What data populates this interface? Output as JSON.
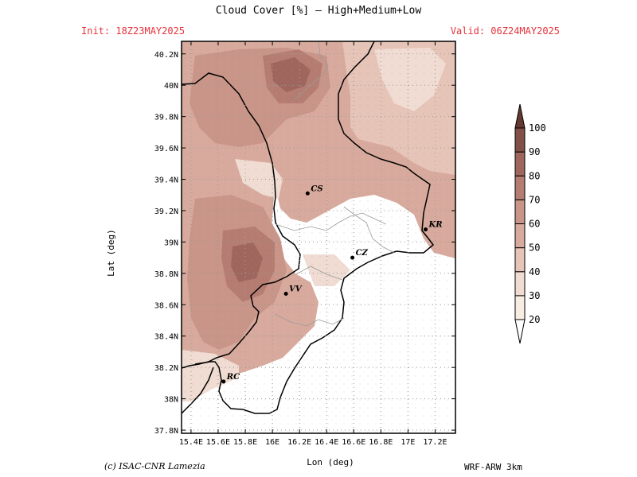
{
  "header": {
    "title": "Cloud Cover [%] — High+Medium+Low",
    "init": "Init: 18Z23MAY2025",
    "valid": "Valid: 06Z24MAY2025"
  },
  "footer": {
    "credit": "(c) ISAC-CNR Lamezia",
    "model": "WRF-ARW 3km"
  },
  "chart_data": {
    "type": "heatmap",
    "title": "Cloud Cover [%] — High+Medium+Low",
    "xlabel": "Lon (deg)",
    "ylabel": "Lat (deg)",
    "xlim": [
      15.33,
      17.35
    ],
    "ylim": [
      37.78,
      40.28
    ],
    "x_ticks": [
      "15.4E",
      "15.6E",
      "15.8E",
      "16E",
      "16.2E",
      "16.4E",
      "16.6E",
      "16.8E",
      "17E",
      "17.2E"
    ],
    "x_tick_values": [
      15.4,
      15.6,
      15.8,
      16.0,
      16.2,
      16.4,
      16.6,
      16.8,
      17.0,
      17.2
    ],
    "y_ticks": [
      "37.8N",
      "38N",
      "38.2N",
      "38.4N",
      "38.6N",
      "38.8N",
      "39N",
      "39.2N",
      "39.4N",
      "39.6N",
      "39.8N",
      "40N",
      "40.2N"
    ],
    "y_tick_values": [
      37.8,
      38.0,
      38.2,
      38.4,
      38.6,
      38.8,
      39.0,
      39.2,
      39.4,
      39.6,
      39.8,
      40.0,
      40.2
    ],
    "grid": true,
    "colorbar": {
      "levels": [
        20,
        30,
        40,
        50,
        60,
        70,
        80,
        90,
        100
      ],
      "colors": [
        "#ffffff",
        "#f8ede3",
        "#f0dcd2",
        "#e6c4b8",
        "#d8aa9d",
        "#c99588",
        "#b57d72",
        "#9e665c",
        "#825048",
        "#643932"
      ]
    },
    "cities": [
      {
        "name": "CS",
        "lon": 16.26,
        "lat": 39.31
      },
      {
        "name": "KR",
        "lon": 17.13,
        "lat": 39.08
      },
      {
        "name": "CZ",
        "lon": 16.59,
        "lat": 38.9
      },
      {
        "name": "VV",
        "lon": 16.1,
        "lat": 38.67
      },
      {
        "name": "RC",
        "lon": 15.64,
        "lat": 38.11
      }
    ]
  }
}
